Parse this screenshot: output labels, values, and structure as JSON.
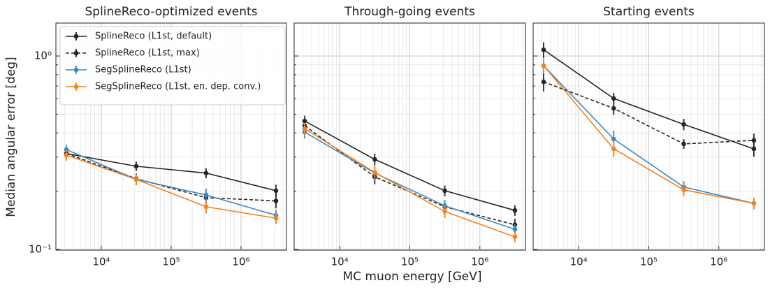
{
  "xlabel": "MC muon energy [GeV]",
  "ylabel": "Median angular error [deg]",
  "chart_data": [
    {
      "type": "line",
      "title": "SplineReco-optimized events",
      "xscale": "log",
      "yscale": "log",
      "grid": true,
      "minor_grid": true,
      "legend": "upper left",
      "xlim": [
        2240,
        4470000
      ],
      "ylim": [
        0.099,
        1.48
      ],
      "xticks": [
        {
          "value": 10000,
          "label": "10⁴"
        },
        {
          "value": 100000,
          "label": "10⁵"
        },
        {
          "value": 1000000,
          "label": "10⁶"
        }
      ],
      "yticks": [
        {
          "value": 0.1,
          "label": "10⁻¹"
        },
        {
          "value": 1,
          "label": "10⁰"
        }
      ],
      "x": [
        3162,
        31623,
        316228,
        3162278
      ],
      "series": [
        {
          "name": "SplineReco (L1st, default)",
          "color": "#262626",
          "linestyle": "solid",
          "values": [
            0.313,
            0.269,
            0.248,
            0.201
          ],
          "errors": [
            0.02,
            0.015,
            0.015,
            0.015
          ]
        },
        {
          "name": "SplineReco (L1st, max)",
          "color": "#262626",
          "linestyle": "dashed",
          "values": [
            0.313,
            0.232,
            0.185,
            0.178
          ],
          "errors": [
            0.02,
            0.015,
            0.013,
            0.015
          ]
        },
        {
          "name": "SegSplineReco (L1st)",
          "color": "#3d88c0",
          "linestyle": "solid",
          "values": [
            0.328,
            0.23,
            0.191,
            0.15
          ],
          "errors": [
            0.02,
            0.015,
            0.015,
            0.01
          ]
        },
        {
          "name": "SegSplineReco (L1st, en. dep. conv.)",
          "color": "#f5821f",
          "linestyle": "solid",
          "values": [
            0.307,
            0.23,
            0.166,
            0.145
          ],
          "errors": [
            0.02,
            0.015,
            0.013,
            0.01
          ]
        }
      ]
    },
    {
      "type": "line",
      "title": "Through-going events",
      "xscale": "log",
      "yscale": "log",
      "grid": true,
      "minor_grid": true,
      "show_ytick_labels": false,
      "xlim": [
        2240,
        4470000
      ],
      "ylim": [
        0.099,
        1.48
      ],
      "xticks": [
        {
          "value": 10000,
          "label": "10⁴"
        },
        {
          "value": 100000,
          "label": "10⁵"
        },
        {
          "value": 1000000,
          "label": "10⁶"
        }
      ],
      "yticks": [
        0.1,
        1
      ],
      "x": [
        3162,
        31623,
        316228,
        3162278
      ],
      "series": [
        {
          "color": "#262626",
          "linestyle": "solid",
          "values": [
            0.461,
            0.292,
            0.201,
            0.159
          ],
          "errors": [
            0.03,
            0.02,
            0.013,
            0.01
          ]
        },
        {
          "color": "#262626",
          "linestyle": "dashed",
          "values": [
            0.436,
            0.237,
            0.166,
            0.134
          ],
          "errors": [
            0.03,
            0.02,
            0.012,
            0.01
          ]
        },
        {
          "color": "#3d88c0",
          "linestyle": "solid",
          "values": [
            0.404,
            0.248,
            0.168,
            0.127
          ],
          "errors": [
            0.03,
            0.02,
            0.012,
            0.008
          ]
        },
        {
          "color": "#f5821f",
          "linestyle": "solid",
          "values": [
            0.421,
            0.25,
            0.157,
            0.116
          ],
          "errors": [
            0.03,
            0.02,
            0.012,
            0.007
          ]
        }
      ]
    },
    {
      "type": "line",
      "title": "Starting events",
      "xscale": "log",
      "yscale": "log",
      "grid": true,
      "minor_grid": true,
      "show_ytick_labels": false,
      "xlim": [
        2240,
        4470000
      ],
      "ylim": [
        0.099,
        1.48
      ],
      "xticks": [
        {
          "value": 10000,
          "label": "10⁴"
        },
        {
          "value": 100000,
          "label": "10⁵"
        },
        {
          "value": 1000000,
          "label": "10⁶"
        }
      ],
      "yticks": [
        0.1,
        1
      ],
      "x": [
        3162,
        31623,
        316228,
        3162278
      ],
      "series": [
        {
          "color": "#262626",
          "linestyle": "solid",
          "values": [
            1.077,
            0.603,
            0.443,
            0.331
          ],
          "errors": [
            0.1,
            0.04,
            0.03,
            0.03
          ]
        },
        {
          "color": "#262626",
          "linestyle": "dashed",
          "values": [
            0.735,
            0.536,
            0.351,
            0.366
          ],
          "errors": [
            0.08,
            0.04,
            0.02,
            0.03
          ]
        },
        {
          "color": "#3d88c0",
          "linestyle": "solid",
          "values": [
            0.89,
            0.372,
            0.21,
            0.173
          ],
          "errors": [
            0.08,
            0.04,
            0.015,
            0.012
          ]
        },
        {
          "color": "#f5821f",
          "linestyle": "solid",
          "values": [
            0.89,
            0.331,
            0.203,
            0.173
          ],
          "errors": [
            0.08,
            0.03,
            0.015,
            0.012
          ]
        }
      ]
    }
  ]
}
